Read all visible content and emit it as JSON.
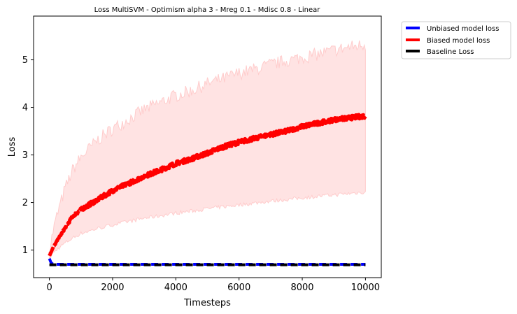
{
  "chart_data": {
    "type": "line",
    "title": "Loss MultiSVM - Optimism alpha 3 - Mreg 0.1 - Mdisc 0.8 - Linear",
    "xlabel": "Timesteps",
    "ylabel": "Loss",
    "xlim": [
      -500,
      10500
    ],
    "ylim": [
      0.42,
      5.92
    ],
    "xticks": [
      0,
      2000,
      4000,
      6000,
      8000,
      10000
    ],
    "yticks": [
      1,
      2,
      3,
      4,
      5
    ],
    "legend_position": "outside-upper-right",
    "series": [
      {
        "name": "Unbiased model loss",
        "color": "#0000ff",
        "style": "dashed",
        "x": [
          0,
          50,
          100,
          200,
          500,
          1000,
          2000,
          4000,
          6000,
          8000,
          10000
        ],
        "y": [
          0.82,
          0.74,
          0.71,
          0.7,
          0.7,
          0.7,
          0.7,
          0.7,
          0.7,
          0.7,
          0.7
        ]
      },
      {
        "name": "Biased model loss",
        "color": "#ff0000",
        "style": "dashed",
        "x": [
          0,
          100,
          250,
          500,
          750,
          1000,
          1500,
          2000,
          2500,
          3000,
          3500,
          4000,
          4500,
          5000,
          5500,
          6000,
          6500,
          7000,
          7500,
          8000,
          8500,
          9000,
          9500,
          10000
        ],
        "y": [
          0.88,
          1.03,
          1.2,
          1.47,
          1.72,
          1.85,
          2.05,
          2.25,
          2.4,
          2.55,
          2.68,
          2.82,
          2.92,
          3.04,
          3.17,
          3.27,
          3.35,
          3.43,
          3.5,
          3.6,
          3.67,
          3.74,
          3.78,
          3.82
        ],
        "band_upper": [
          0.95,
          1.35,
          1.75,
          2.3,
          2.7,
          2.95,
          3.3,
          3.55,
          3.75,
          3.95,
          4.1,
          4.25,
          4.35,
          4.5,
          4.6,
          4.72,
          4.8,
          4.9,
          4.98,
          5.05,
          5.12,
          5.2,
          5.27,
          5.32
        ],
        "band_lower": [
          0.82,
          0.92,
          1.02,
          1.15,
          1.26,
          1.35,
          1.45,
          1.53,
          1.6,
          1.67,
          1.72,
          1.78,
          1.82,
          1.87,
          1.91,
          1.95,
          1.99,
          2.03,
          2.06,
          2.1,
          2.13,
          2.16,
          2.19,
          2.22
        ],
        "band_color": "#ffcccc"
      },
      {
        "name": "Baseline Loss",
        "color": "#000000",
        "style": "dashed",
        "x": [
          0,
          10000
        ],
        "y": [
          0.69,
          0.69
        ]
      }
    ]
  }
}
